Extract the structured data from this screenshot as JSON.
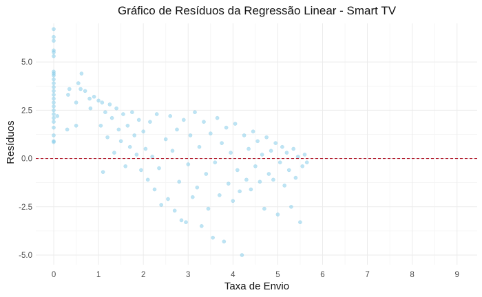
{
  "chart_data": {
    "type": "scatter",
    "title": "Gráfico de Resíduos da Regressão Linear - Smart TV",
    "xlabel": "Taxa de Envio",
    "ylabel": "Resíduos",
    "xlim": [
      -0.4,
      9.45
    ],
    "ylim": [
      -5.5,
      7.0
    ],
    "x_ticks": [
      0,
      1,
      2,
      3,
      4,
      5,
      6,
      7,
      8,
      9
    ],
    "y_ticks": [
      -5.0,
      -2.5,
      0.0,
      2.5,
      5.0
    ],
    "x_tick_labels": [
      "0",
      "1",
      "2",
      "3",
      "4",
      "5",
      "6",
      "7",
      "8",
      "9"
    ],
    "y_tick_labels": [
      "-5.0",
      "-2.5",
      "0.0",
      "2.5",
      "5.0"
    ],
    "grid": true,
    "reference_line": {
      "y": 0,
      "style": "dashed",
      "color": "#b2182b"
    },
    "point_color": "#87ceeb",
    "point_opacity": 0.55,
    "points": [
      [
        0,
        6.7
      ],
      [
        0,
        6.3
      ],
      [
        0,
        6.1
      ],
      [
        0,
        5.6
      ],
      [
        0,
        5.5
      ],
      [
        0,
        5.3
      ],
      [
        0,
        4.5
      ],
      [
        0,
        4.4
      ],
      [
        0,
        4.3
      ],
      [
        0,
        4.1
      ],
      [
        0,
        3.9
      ],
      [
        0,
        3.7
      ],
      [
        0,
        3.5
      ],
      [
        0,
        3.3
      ],
      [
        0,
        3.1
      ],
      [
        0,
        2.9
      ],
      [
        0,
        2.7
      ],
      [
        0,
        2.5
      ],
      [
        0,
        2.3
      ],
      [
        0,
        2.1
      ],
      [
        0,
        1.9
      ],
      [
        0,
        1.6
      ],
      [
        0,
        1.2
      ],
      [
        0,
        0.9
      ],
      [
        0,
        0.85
      ],
      [
        0.08,
        2.2
      ],
      [
        0.3,
        1.5
      ],
      [
        0.32,
        3.3
      ],
      [
        0.35,
        3.6
      ],
      [
        0.5,
        2.9
      ],
      [
        0.5,
        1.7
      ],
      [
        0.55,
        3.9
      ],
      [
        0.6,
        3.6
      ],
      [
        0.62,
        4.4
      ],
      [
        0.7,
        3.5
      ],
      [
        0.8,
        3.1
      ],
      [
        0.82,
        2.6
      ],
      [
        0.9,
        3.2
      ],
      [
        1.0,
        3.0
      ],
      [
        1.05,
        1.7
      ],
      [
        1.08,
        2.9
      ],
      [
        1.1,
        -0.7
      ],
      [
        1.15,
        2.4
      ],
      [
        1.2,
        1.1
      ],
      [
        1.25,
        2.8
      ],
      [
        1.3,
        2.1
      ],
      [
        1.35,
        0.3
      ],
      [
        1.4,
        2.6
      ],
      [
        1.45,
        1.5
      ],
      [
        1.5,
        0.9
      ],
      [
        1.55,
        2.3
      ],
      [
        1.6,
        -0.4
      ],
      [
        1.65,
        1.7
      ],
      [
        1.7,
        0.6
      ],
      [
        1.75,
        2.4
      ],
      [
        1.8,
        1.2
      ],
      [
        1.85,
        0.2
      ],
      [
        1.9,
        2.0
      ],
      [
        1.95,
        -0.6
      ],
      [
        2.0,
        1.4
      ],
      [
        2.05,
        0.5
      ],
      [
        2.1,
        -1.1
      ],
      [
        2.15,
        1.9
      ],
      [
        2.2,
        0.1
      ],
      [
        2.25,
        -1.6
      ],
      [
        2.3,
        2.3
      ],
      [
        2.35,
        -0.5
      ],
      [
        2.4,
        -2.4
      ],
      [
        2.5,
        1.0
      ],
      [
        2.55,
        -2.1
      ],
      [
        2.6,
        2.2
      ],
      [
        2.65,
        0.4
      ],
      [
        2.7,
        -2.7
      ],
      [
        2.75,
        1.5
      ],
      [
        2.8,
        -1.2
      ],
      [
        2.85,
        -3.2
      ],
      [
        2.9,
        2.0
      ],
      [
        2.95,
        -3.3
      ],
      [
        3.0,
        -0.3
      ],
      [
        3.05,
        1.2
      ],
      [
        3.1,
        -2.0
      ],
      [
        3.15,
        2.4
      ],
      [
        3.2,
        -1.5
      ],
      [
        3.25,
        0.6
      ],
      [
        3.3,
        -3.5
      ],
      [
        3.35,
        1.9
      ],
      [
        3.4,
        -0.8
      ],
      [
        3.45,
        -2.6
      ],
      [
        3.5,
        1.3
      ],
      [
        3.55,
        -4.1
      ],
      [
        3.6,
        -0.2
      ],
      [
        3.65,
        2.1
      ],
      [
        3.7,
        -1.9
      ],
      [
        3.75,
        0.8
      ],
      [
        3.8,
        -4.3
      ],
      [
        3.85,
        1.6
      ],
      [
        3.9,
        -1.3
      ],
      [
        3.95,
        0.3
      ],
      [
        4.0,
        -2.2
      ],
      [
        4.05,
        1.8
      ],
      [
        4.1,
        -0.6
      ],
      [
        4.15,
        -1.7
      ],
      [
        4.2,
        -5.0
      ],
      [
        4.25,
        1.2
      ],
      [
        4.3,
        -1.1
      ],
      [
        4.35,
        0.5
      ],
      [
        4.4,
        -1.6
      ],
      [
        4.45,
        1.4
      ],
      [
        4.5,
        -0.4
      ],
      [
        4.55,
        0.9
      ],
      [
        4.6,
        -1.2
      ],
      [
        4.65,
        0.2
      ],
      [
        4.7,
        -2.6
      ],
      [
        4.75,
        1.1
      ],
      [
        4.8,
        -0.8
      ],
      [
        4.85,
        0.4
      ],
      [
        4.9,
        -1.1
      ],
      [
        4.95,
        0.8
      ],
      [
        5.0,
        -2.9
      ],
      [
        5.05,
        -0.2
      ],
      [
        5.1,
        0.6
      ],
      [
        5.15,
        -1.4
      ],
      [
        5.2,
        0.3
      ],
      [
        5.25,
        -0.6
      ],
      [
        5.3,
        -2.5
      ],
      [
        5.35,
        0.5
      ],
      [
        5.4,
        -1.0
      ],
      [
        5.45,
        0.1
      ],
      [
        5.5,
        -3.3
      ],
      [
        5.55,
        -0.4
      ],
      [
        5.6,
        0.2
      ],
      [
        5.65,
        -0.2
      ]
    ]
  }
}
